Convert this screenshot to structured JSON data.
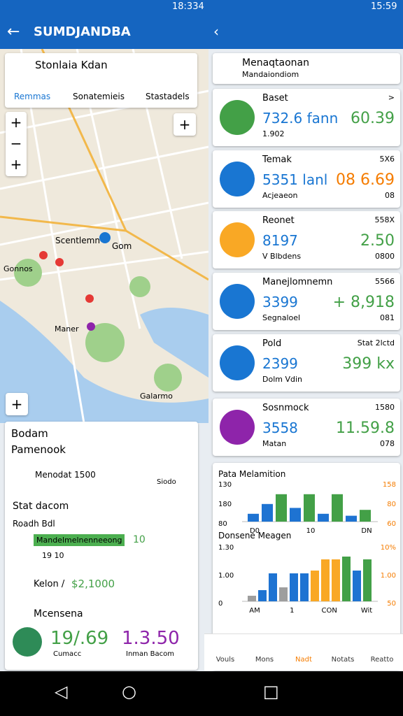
{
  "status_bar": {
    "left_time": "18:334",
    "right_time": "15:59"
  },
  "app_bar": {
    "title": "SUMDJANDBA"
  },
  "search": {
    "title": "Stonlaia Kdan",
    "tabs": [
      "Remmas",
      "Sonatemieis",
      "Stastadels"
    ]
  },
  "map": {
    "labels": [
      "Scentlemn",
      "Gom",
      "Gonnos",
      "Maner",
      "Galarmo"
    ]
  },
  "summary": {
    "title": "Bodam",
    "subtitle": "Pamenook",
    "row1": "Menodat 1500",
    "row1_side": "Siodo",
    "section": "Stat dacom",
    "section_sub": "Roadh Bdl",
    "badge": "Mandelmelnenneeong",
    "badge_value": "10",
    "badge_note": "19 10",
    "row2": "Kelon /",
    "row2_value": "$2,1000",
    "footer_title": "Mcensena",
    "big_left": "19/.69",
    "big_right": "1.3.50",
    "big_left_note": "Cumacc",
    "big_right_note": "Inman Bacom"
  },
  "panel": {
    "title": "Menaqtaonan",
    "subtitle": "Mandaiondiom"
  },
  "cards": [
    {
      "name": "Baset",
      "value": "732.6 fann",
      "right": "60.39",
      "sub": "1.902",
      "corner": ">",
      "color": "#43a047"
    },
    {
      "name": "Temak",
      "value": "5351 lanl",
      "right": "08 6.69",
      "sub": "Acjeaeon",
      "corner": "5X6",
      "corner_sub": "08",
      "color": "#1976d2"
    },
    {
      "name": "Reonet",
      "value": "8197",
      "right": "2.50",
      "sub": "V Blbdens",
      "corner": "558X",
      "corner_sub": "0800",
      "color": "#f9a825"
    },
    {
      "name": "Manejlomnemn",
      "value": "3399",
      "right": "+ 8,918",
      "sub": "Segnaloel",
      "corner": "5566",
      "corner_sub": "081",
      "color": "#1976d2"
    },
    {
      "name": "Pold",
      "value": "2399",
      "right": "399 kx",
      "sub": "Dolm  Vdin",
      "corner": "Stat 2lctd",
      "color": "#1976d2"
    },
    {
      "name": "Sosnmock",
      "value": "3558",
      "right": "11.59.8",
      "sub": "Matan",
      "corner": "1580",
      "corner_sub": "078",
      "color": "#8e24aa"
    }
  ],
  "charts": [
    {
      "title": "Pata Melamition",
      "left_labels": [
        "130",
        "180",
        "80"
      ],
      "right_labels": [
        "158",
        "80",
        "60"
      ],
      "x_labels": [
        "D0",
        "10",
        "DN"
      ],
      "ylim": [
        0,
        100
      ],
      "bars": [
        {
          "color": "#1e73d2",
          "value": 20
        },
        {
          "color": "#1e73d2",
          "value": 45
        },
        {
          "color": "#43a047",
          "value": 70
        },
        {
          "color": "#1e73d2",
          "value": 35
        },
        {
          "color": "#43a047",
          "value": 70
        },
        {
          "color": "#1e73d2",
          "value": 20
        },
        {
          "color": "#43a047",
          "value": 70
        },
        {
          "color": "#1e73d2",
          "value": 15
        },
        {
          "color": "#43a047",
          "value": 30
        }
      ]
    },
    {
      "title": "Donsene Meagen",
      "left_labels": [
        "1.30",
        "1.00",
        "0"
      ],
      "right_labels": [
        "10%",
        "1.00",
        "50"
      ],
      "x_labels": [
        "AM",
        "1",
        "CON",
        "Wit"
      ],
      "ylim": [
        0,
        100
      ],
      "bars": [
        {
          "color": "#9e9e9e",
          "value": 10
        },
        {
          "color": "#1e73d2",
          "value": 20
        },
        {
          "color": "#1e73d2",
          "value": 50
        },
        {
          "color": "#9e9e9e",
          "value": 25
        },
        {
          "color": "#1e73d2",
          "value": 50
        },
        {
          "color": "#1e73d2",
          "value": 50
        },
        {
          "color": "#f9a825",
          "value": 55
        },
        {
          "color": "#f9a825",
          "value": 75
        },
        {
          "color": "#f9a825",
          "value": 75
        },
        {
          "color": "#43a047",
          "value": 80
        },
        {
          "color": "#1e73d2",
          "value": 55
        },
        {
          "color": "#43a047",
          "value": 75
        }
      ]
    }
  ],
  "nav": [
    "Vouls",
    "Mons",
    "Nadt",
    "Notats",
    "Reatto"
  ]
}
